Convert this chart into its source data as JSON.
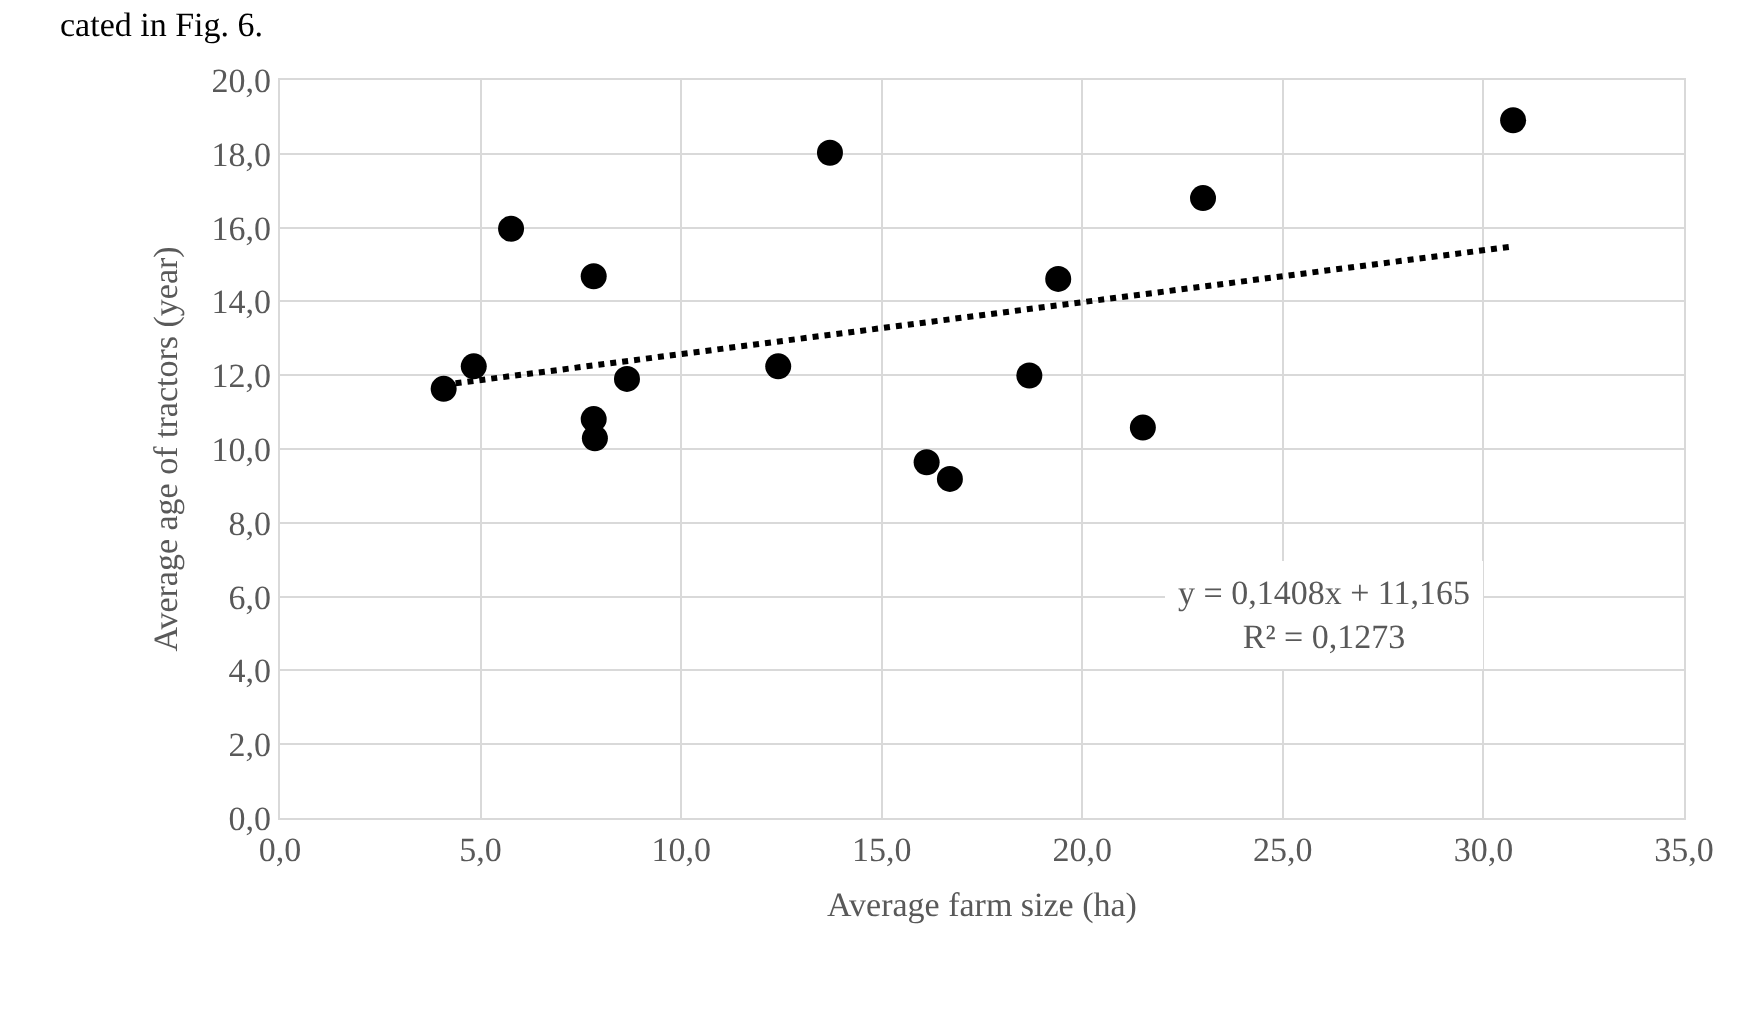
{
  "chart_data": {
    "type": "scatter",
    "xlabel": "Average farm size (ha)",
    "ylabel": "Average age of tractors (year)",
    "series": [
      {
        "color": "#000000",
        "marker": "circle",
        "x": [
          4.08,
          4.83,
          5.76,
          7.82,
          7.82,
          7.85,
          8.65,
          12.42,
          13.71,
          16.12,
          16.7,
          19.4,
          18.68,
          21.51,
          23.01,
          30.74
        ],
        "values": [
          11.63,
          12.24,
          15.97,
          14.68,
          10.81,
          10.29,
          11.9,
          12.24,
          18.03,
          9.64,
          9.19,
          14.61,
          11.99,
          10.58,
          16.8,
          18.91
        ]
      },
      {
        "type": "line",
        "color": "#000000",
        "line_style": "dotted",
        "x": [
          4.08,
          30.74
        ],
        "values": [
          11.74,
          15.49
        ]
      }
    ],
    "xlim": [
      0,
      35
    ],
    "xticks": [
      {
        "value": 0,
        "label": "0,0"
      },
      {
        "value": 5,
        "label": "5,0"
      },
      {
        "value": 10,
        "label": "10,0"
      },
      {
        "value": 15,
        "label": "15,0"
      },
      {
        "value": 20,
        "label": "20,0"
      },
      {
        "value": 25,
        "label": "25,0"
      },
      {
        "value": 30,
        "label": "30,0"
      },
      {
        "value": 35,
        "label": "35,0"
      }
    ],
    "ylim": [
      0,
      20
    ],
    "yticks": [
      {
        "value": 0,
        "label": "0,0"
      },
      {
        "value": 2,
        "label": "2,0"
      },
      {
        "value": 4,
        "label": "4,0"
      },
      {
        "value": 6,
        "label": "6,0"
      },
      {
        "value": 8,
        "label": "8,0"
      },
      {
        "value": 10,
        "label": "10,0"
      },
      {
        "value": 12,
        "label": "12,0"
      },
      {
        "value": 14,
        "label": "14,0"
      },
      {
        "value": 16,
        "label": "16,0"
      },
      {
        "value": 18,
        "label": "18,0"
      },
      {
        "value": 20,
        "label": "20,0"
      }
    ],
    "grid": true,
    "annotations": [
      "y = 0,1408x + 11,165\nR² = 0,1273",
      "cated in Fig. 6."
    ]
  }
}
